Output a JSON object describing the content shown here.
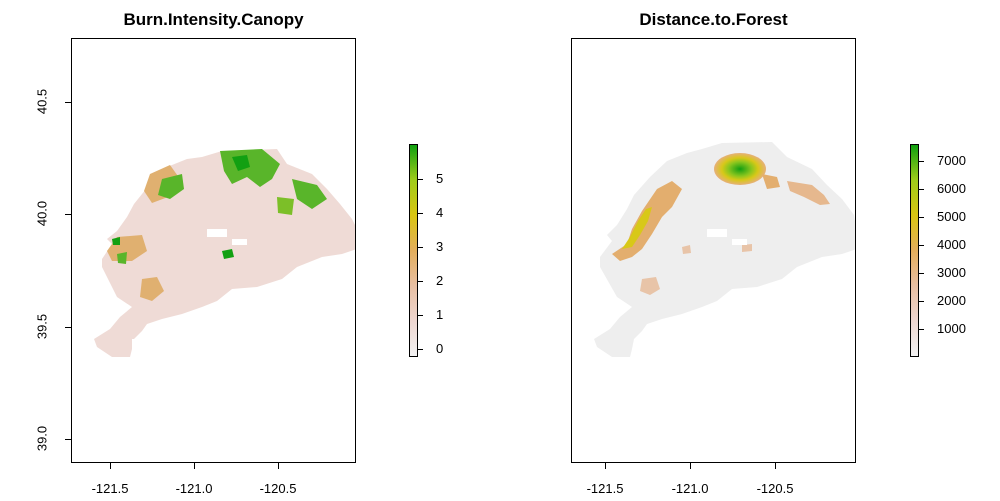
{
  "panels": [
    {
      "title": "Burn.Intensity.Canopy",
      "x_ticks": [
        "-121.5",
        "-121.0",
        "-120.5"
      ],
      "y_ticks": [
        "39.0",
        "39.5",
        "40.0",
        "40.5"
      ],
      "legend_ticks": [
        "0",
        "1",
        "2",
        "3",
        "4",
        "5"
      ],
      "legend_colors": [
        "#f2f2f2",
        "#eed6d0",
        "#e8bfa2",
        "#e3ae5c",
        "#d9c512",
        "#9fcc1a",
        "#10a010"
      ]
    },
    {
      "title": "Distance.to.Forest",
      "x_ticks": [
        "-121.5",
        "-121.0",
        "-120.5"
      ],
      "y_ticks": [],
      "legend_ticks": [
        "1000",
        "2000",
        "3000",
        "4000",
        "5000",
        "6000",
        "7000"
      ],
      "legend_colors": [
        "#f2f2f2",
        "#eed6d0",
        "#e8bfa2",
        "#e3ae5c",
        "#d9c512",
        "#9fcc1a",
        "#10a010"
      ]
    }
  ]
}
